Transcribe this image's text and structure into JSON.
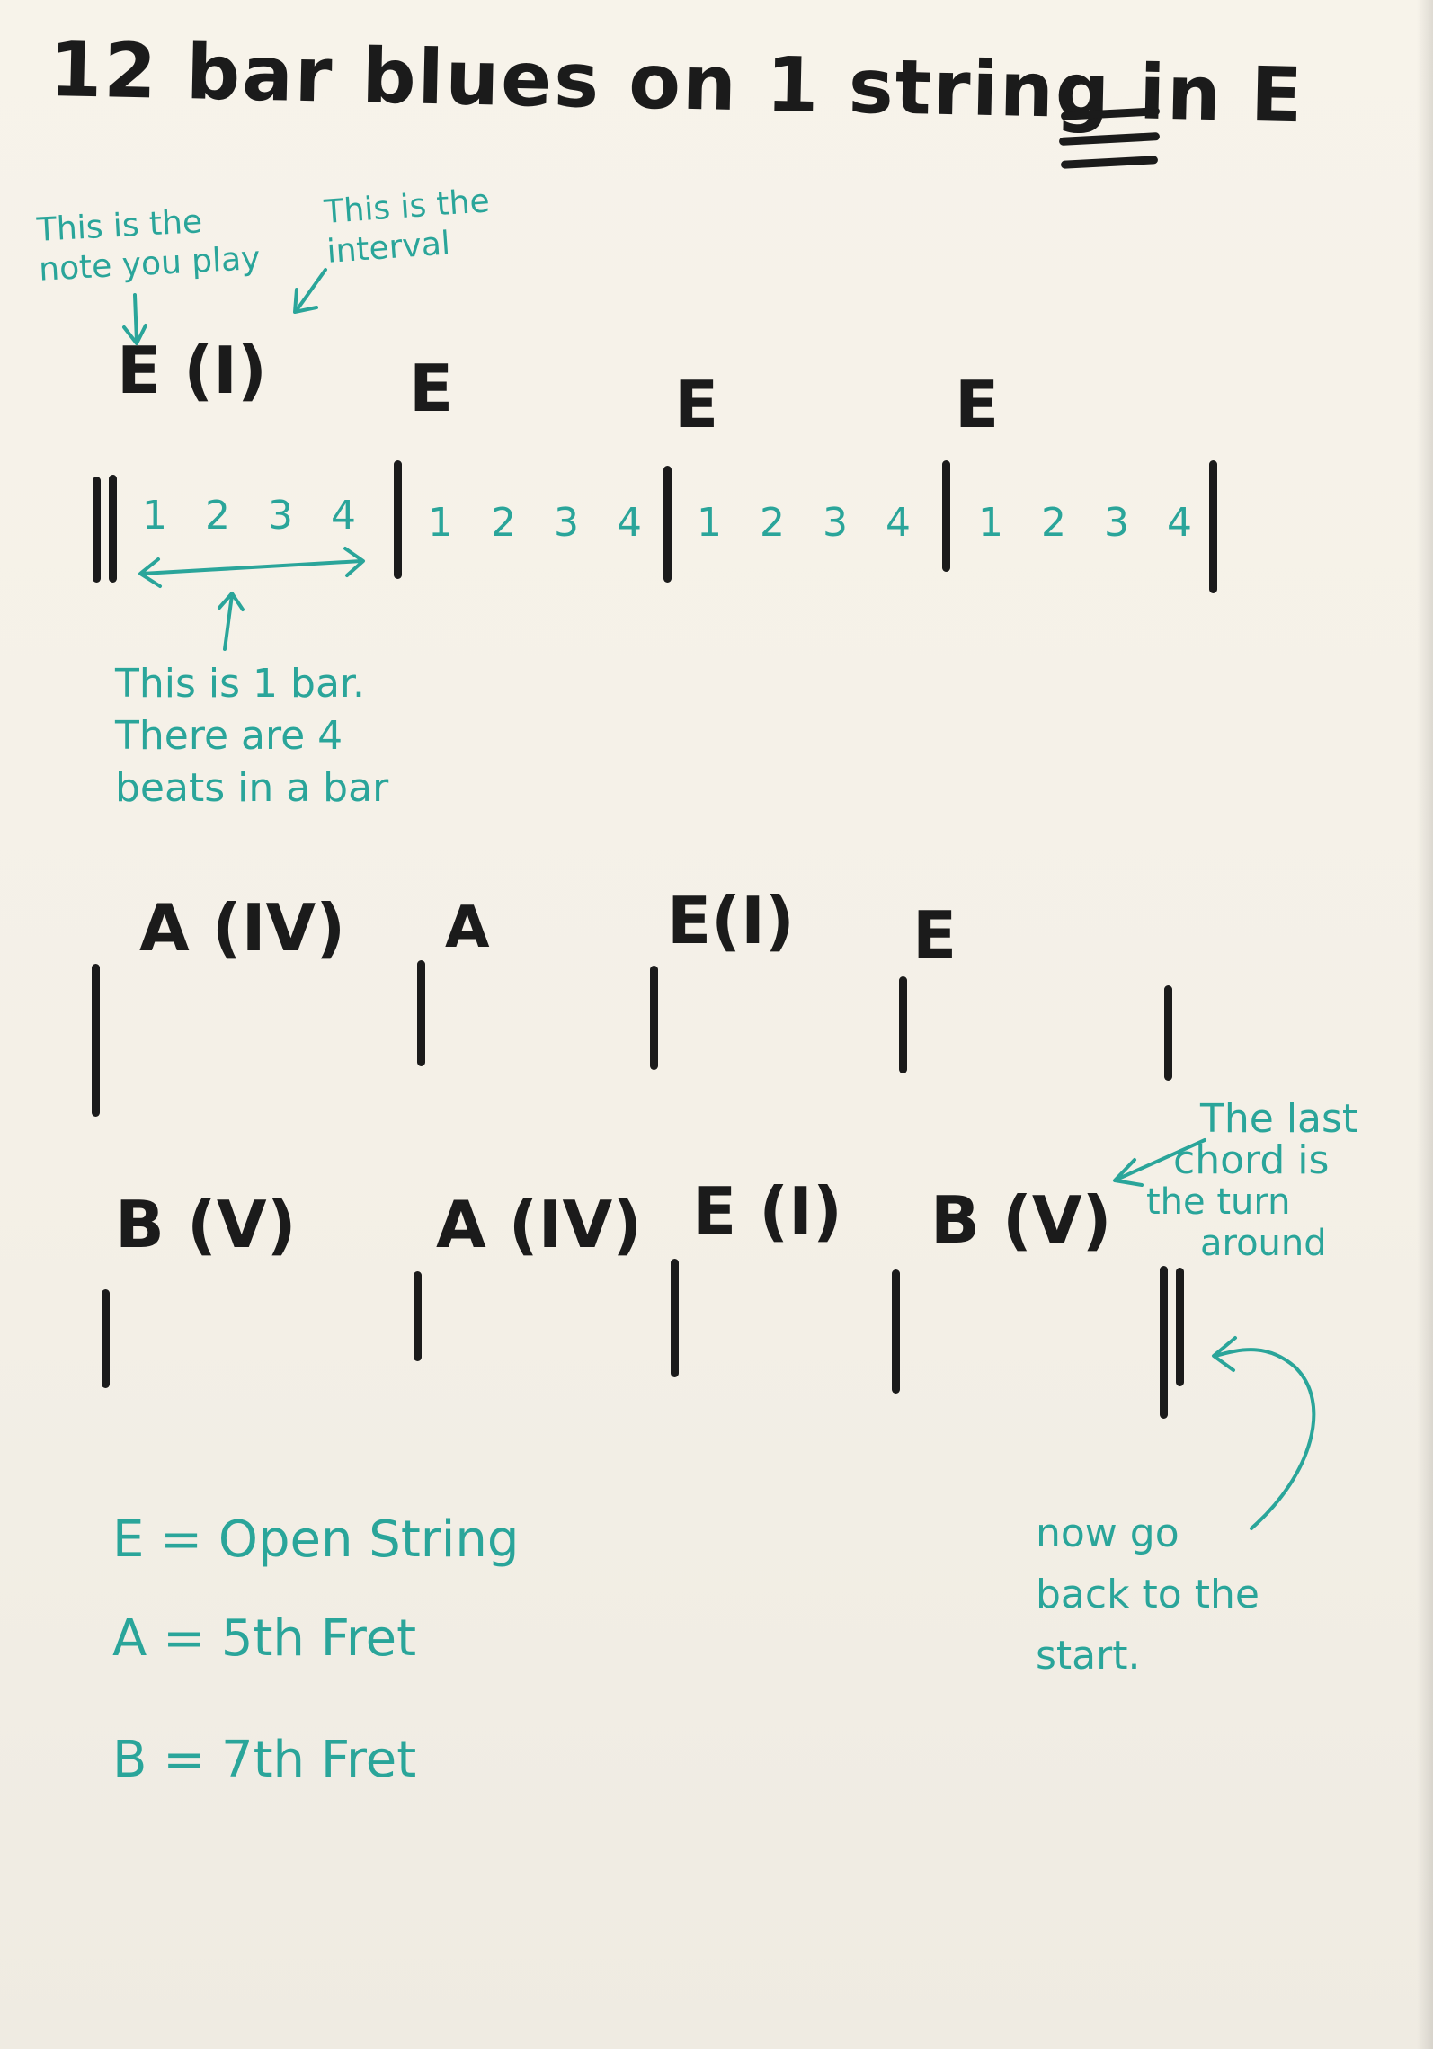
{
  "title": "12 bar blues on 1 string in E",
  "annotations": {
    "note_you_play": "This is the note you play",
    "interval": "This is the interval",
    "one_bar_line1": "This is 1 bar.",
    "one_bar_line2": "There are 4",
    "one_bar_line3": "beats in a bar",
    "turnaround_line1": "The last",
    "turnaround_line2": "chord is",
    "turnaround_line3": "the turn",
    "turnaround_line4": "around",
    "go_back_line1": "now go",
    "go_back_line2": "back to the",
    "go_back_line3": "start."
  },
  "rows": [
    {
      "chords": [
        "E (I)",
        "E",
        "E",
        "E"
      ],
      "beats": [
        "1 2 3 4",
        "1 2 3 4",
        "1 2 3 4",
        "1 2 3 4"
      ]
    },
    {
      "chords": [
        "A (IV)",
        "A",
        "E(I)",
        "E"
      ]
    },
    {
      "chords": [
        "B (V)",
        "A (IV)",
        "E (I)",
        "B (V)"
      ]
    }
  ],
  "legend": [
    "E = Open String",
    "A = 5th Fret",
    "B = 7th Fret"
  ],
  "colors": {
    "ink": "#1b1b1b",
    "teal": "#2aa59a",
    "paper": "#f4f0e7"
  }
}
